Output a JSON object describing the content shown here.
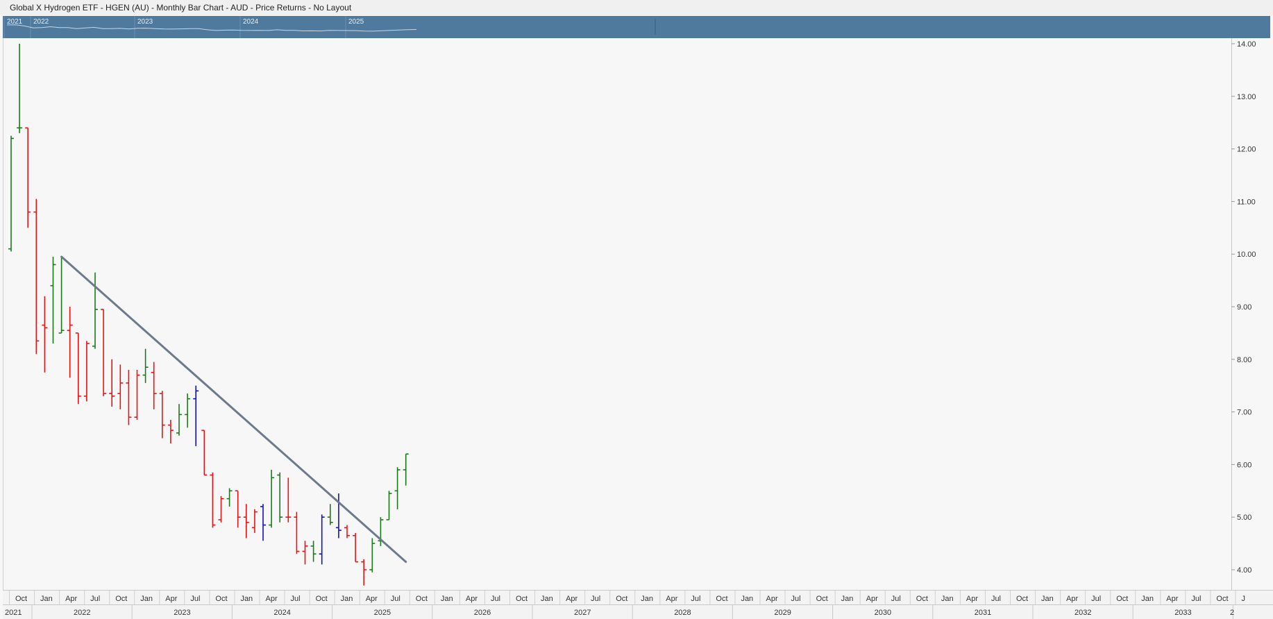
{
  "window": {
    "title": "Global X Hydrogen ETF - HGEN (AU) - Monthly Bar Chart - AUD - Price Returns - No Layout"
  },
  "navigator": {
    "year_labels": [
      "2021",
      "2022",
      "2023",
      "2024",
      "2025"
    ]
  },
  "colors": {
    "up": "#1a7a1a",
    "down": "#ee1111",
    "neutral": "#1010cc",
    "trendline": "#6c7a8c",
    "navigator_bg": "#50799e",
    "plot_bg": "#f7f7f7"
  },
  "chart_data": {
    "type": "ohlc_bar",
    "title": "Global X Hydrogen ETF - HGEN (AU) - Monthly Bar Chart - AUD - Price Returns - No Layout",
    "xlabel": "",
    "ylabel": "",
    "ylim": [
      3.8,
      14.1
    ],
    "y_ticks": [
      "14.00",
      "13.00",
      "12.00",
      "11.00",
      "10.00",
      "9.00",
      "8.00",
      "7.00",
      "6.00",
      "5.00",
      "4.00"
    ],
    "x_month_labels": [
      "Oct",
      "Jan",
      "Apr",
      "Jul",
      "Oct",
      "Jan",
      "Apr",
      "Jul",
      "Oct",
      "Jan",
      "Apr",
      "Jul",
      "Oct",
      "Jan",
      "Apr",
      "Jul",
      "Oct",
      "Jan",
      "Apr",
      "Jul",
      "Oct",
      "Jan",
      "Apr",
      "Jul",
      "Oct",
      "Jan",
      "Apr",
      "Jul",
      "Oct",
      "Jan",
      "Apr",
      "Jul",
      "Oct",
      "Jan",
      "Apr",
      "Jul",
      "Oct",
      "Jan",
      "Apr",
      "Jul",
      "Oct",
      "Jan",
      "Apr",
      "Jul",
      "Oct",
      "Jan",
      "Apr",
      "Jul",
      "Oct",
      "J"
    ],
    "x_year_labels": [
      "2021",
      "2022",
      "2023",
      "2024",
      "2025",
      "2026",
      "2027",
      "2028",
      "2029",
      "2030",
      "2031",
      "2032",
      "2033",
      "2"
    ],
    "bars": [
      {
        "date": "2021-10",
        "open": 10.1,
        "high": 12.25,
        "low": 10.05,
        "close": 12.2,
        "color": "up"
      },
      {
        "date": "2021-11",
        "open": 12.4,
        "high": 14.0,
        "low": 12.3,
        "close": 12.4,
        "color": "up"
      },
      {
        "date": "2021-12",
        "open": 12.4,
        "high": 12.4,
        "low": 10.5,
        "close": 10.8,
        "color": "down"
      },
      {
        "date": "2022-01",
        "open": 10.8,
        "high": 11.05,
        "low": 8.1,
        "close": 8.35,
        "color": "down"
      },
      {
        "date": "2022-02",
        "open": 8.65,
        "high": 9.2,
        "low": 7.75,
        "close": 8.6,
        "color": "down"
      },
      {
        "date": "2022-03",
        "open": 9.4,
        "high": 9.95,
        "low": 8.3,
        "close": 9.8,
        "color": "up"
      },
      {
        "date": "2022-04",
        "open": 8.5,
        "high": 9.95,
        "low": 8.5,
        "close": 8.55,
        "color": "up"
      },
      {
        "date": "2022-05",
        "open": 8.55,
        "high": 9.0,
        "low": 7.65,
        "close": 8.65,
        "color": "down"
      },
      {
        "date": "2022-06",
        "open": 8.5,
        "high": 8.5,
        "low": 7.15,
        "close": 7.3,
        "color": "down"
      },
      {
        "date": "2022-07",
        "open": 7.3,
        "high": 8.35,
        "low": 7.2,
        "close": 8.3,
        "color": "down"
      },
      {
        "date": "2022-08",
        "open": 8.25,
        "high": 9.65,
        "low": 8.2,
        "close": 8.95,
        "color": "up"
      },
      {
        "date": "2022-09",
        "open": 8.95,
        "high": 8.95,
        "low": 7.3,
        "close": 7.35,
        "color": "down"
      },
      {
        "date": "2022-10",
        "open": 7.35,
        "high": 8.0,
        "low": 7.1,
        "close": 7.3,
        "color": "down"
      },
      {
        "date": "2022-11",
        "open": 7.35,
        "high": 7.9,
        "low": 7.05,
        "close": 7.55,
        "color": "down"
      },
      {
        "date": "2022-12",
        "open": 7.55,
        "high": 7.8,
        "low": 6.75,
        "close": 6.9,
        "color": "down"
      },
      {
        "date": "2023-01",
        "open": 6.9,
        "high": 7.8,
        "low": 6.85,
        "close": 7.7,
        "color": "down"
      },
      {
        "date": "2023-02",
        "open": 7.7,
        "high": 8.2,
        "low": 7.55,
        "close": 7.85,
        "color": "up"
      },
      {
        "date": "2023-03",
        "open": 7.75,
        "high": 7.95,
        "low": 7.05,
        "close": 7.35,
        "color": "down"
      },
      {
        "date": "2023-04",
        "open": 7.35,
        "high": 7.4,
        "low": 6.5,
        "close": 6.75,
        "color": "down"
      },
      {
        "date": "2023-05",
        "open": 6.75,
        "high": 6.85,
        "low": 6.4,
        "close": 6.65,
        "color": "down"
      },
      {
        "date": "2023-06",
        "open": 6.6,
        "high": 7.15,
        "low": 6.55,
        "close": 6.95,
        "color": "up"
      },
      {
        "date": "2023-07",
        "open": 6.95,
        "high": 7.35,
        "low": 6.7,
        "close": 7.25,
        "color": "up"
      },
      {
        "date": "2023-08",
        "open": 7.25,
        "high": 7.5,
        "low": 6.35,
        "close": 7.4,
        "color": "neutral"
      },
      {
        "date": "2023-09",
        "open": 6.65,
        "high": 6.65,
        "low": 5.8,
        "close": 5.8,
        "color": "down"
      },
      {
        "date": "2023-10",
        "open": 5.8,
        "high": 5.85,
        "low": 4.8,
        "close": 4.85,
        "color": "down"
      },
      {
        "date": "2023-11",
        "open": 4.95,
        "high": 5.4,
        "low": 4.9,
        "close": 5.35,
        "color": "down"
      },
      {
        "date": "2023-12",
        "open": 5.35,
        "high": 5.55,
        "low": 5.2,
        "close": 5.5,
        "color": "up"
      },
      {
        "date": "2024-01",
        "open": 5.5,
        "high": 5.5,
        "low": 4.8,
        "close": 5.0,
        "color": "down"
      },
      {
        "date": "2024-02",
        "open": 5.0,
        "high": 5.25,
        "low": 4.6,
        "close": 4.9,
        "color": "down"
      },
      {
        "date": "2024-03",
        "open": 4.8,
        "high": 5.15,
        "low": 4.7,
        "close": 5.1,
        "color": "down"
      },
      {
        "date": "2024-04",
        "open": 5.2,
        "high": 5.25,
        "low": 4.55,
        "close": 4.85,
        "color": "neutral"
      },
      {
        "date": "2024-05",
        "open": 4.85,
        "high": 5.9,
        "low": 4.8,
        "close": 5.75,
        "color": "up"
      },
      {
        "date": "2024-06",
        "open": 5.8,
        "high": 5.85,
        "low": 4.9,
        "close": 5.0,
        "color": "up"
      },
      {
        "date": "2024-07",
        "open": 5.0,
        "high": 5.75,
        "low": 4.9,
        "close": 5.0,
        "color": "down"
      },
      {
        "date": "2024-08",
        "open": 5.0,
        "high": 5.1,
        "low": 4.3,
        "close": 4.35,
        "color": "down"
      },
      {
        "date": "2024-09",
        "open": 4.35,
        "high": 4.55,
        "low": 4.1,
        "close": 4.45,
        "color": "down"
      },
      {
        "date": "2024-10",
        "open": 4.45,
        "high": 4.55,
        "low": 4.15,
        "close": 4.3,
        "color": "up"
      },
      {
        "date": "2024-11",
        "open": 4.3,
        "high": 5.05,
        "low": 4.1,
        "close": 5.0,
        "color": "neutral"
      },
      {
        "date": "2024-12",
        "open": 5.0,
        "high": 5.25,
        "low": 4.85,
        "close": 4.9,
        "color": "up"
      },
      {
        "date": "2025-01",
        "open": 4.8,
        "high": 5.45,
        "low": 4.6,
        "close": 4.75,
        "color": "neutral"
      },
      {
        "date": "2025-02",
        "open": 4.8,
        "high": 4.85,
        "low": 4.6,
        "close": 4.65,
        "color": "down"
      },
      {
        "date": "2025-03",
        "open": 4.65,
        "high": 4.7,
        "low": 4.15,
        "close": 4.15,
        "color": "down"
      },
      {
        "date": "2025-04",
        "open": 4.15,
        "high": 4.2,
        "low": 3.7,
        "close": 4.0,
        "color": "down"
      },
      {
        "date": "2025-05",
        "open": 4.0,
        "high": 4.6,
        "low": 3.95,
        "close": 4.5,
        "color": "up"
      },
      {
        "date": "2025-06",
        "open": 4.55,
        "high": 5.0,
        "low": 4.45,
        "close": 4.95,
        "color": "up"
      },
      {
        "date": "2025-07",
        "open": 4.95,
        "high": 5.5,
        "low": 4.95,
        "close": 5.45,
        "color": "up"
      },
      {
        "date": "2025-08",
        "open": 5.5,
        "high": 5.95,
        "low": 5.15,
        "close": 5.9,
        "color": "up"
      },
      {
        "date": "2025-09",
        "open": 5.9,
        "high": 6.2,
        "low": 5.6,
        "close": 6.2,
        "color": "up"
      }
    ],
    "trendline": {
      "from": {
        "date": "2022-04",
        "value": 9.95
      },
      "to": {
        "date": "2025-09",
        "value": 4.15
      }
    },
    "navigator_line": [
      12.2,
      12.4,
      10.8,
      8.4,
      8.6,
      9.8,
      8.6,
      8.7,
      7.3,
      8.3,
      9.0,
      7.4,
      7.3,
      7.6,
      6.9,
      7.7,
      7.9,
      7.4,
      6.8,
      6.7,
      7.0,
      7.3,
      7.4,
      5.8,
      4.9,
      5.4,
      5.5,
      5.0,
      4.9,
      5.1,
      4.9,
      5.8,
      5.0,
      5.0,
      4.4,
      4.5,
      4.3,
      5.0,
      4.9,
      4.8,
      4.7,
      4.2,
      4.0,
      4.5,
      5.0,
      5.5,
      5.9,
      6.2
    ],
    "grid": false,
    "legend": "none"
  }
}
